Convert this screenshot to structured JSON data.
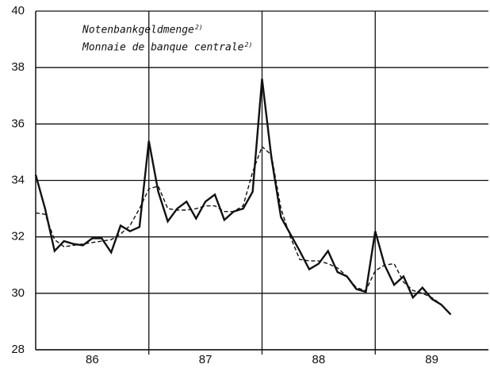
{
  "chart_data": {
    "type": "line",
    "legend_lines": [
      "Notenbankgeldmenge",
      "Monnaie de banque centrale"
    ],
    "legend_note": "2)",
    "x": [
      86,
      86.083,
      86.167,
      86.25,
      86.333,
      86.417,
      86.5,
      86.583,
      86.667,
      86.75,
      86.833,
      86.917,
      87,
      87.083,
      87.167,
      87.25,
      87.333,
      87.417,
      87.5,
      87.583,
      87.667,
      87.75,
      87.833,
      87.917,
      88,
      88.083,
      88.167,
      88.25,
      88.333,
      88.417,
      88.5,
      88.583,
      88.667,
      88.75,
      88.833,
      88.917,
      89,
      89.083,
      89.167,
      89.25,
      89.333,
      89.417,
      89.5,
      89.583,
      89.667
    ],
    "series": [
      {
        "color": "#111111",
        "style": "solid",
        "values": [
          34.2,
          33.0,
          31.5,
          31.85,
          31.75,
          31.7,
          31.95,
          31.95,
          31.45,
          32.4,
          32.2,
          32.35,
          35.4,
          33.6,
          32.55,
          33.0,
          33.25,
          32.65,
          33.25,
          33.5,
          32.6,
          32.9,
          33.0,
          33.6,
          37.6,
          34.8,
          32.7,
          32.1,
          31.5,
          30.85,
          31.05,
          31.5,
          30.75,
          30.6,
          30.15,
          30.05,
          32.2,
          31.0,
          30.3,
          30.6,
          29.85,
          30.2,
          29.8,
          29.6,
          29.25
        ]
      },
      {
        "color": "#111111",
        "style": "dashed",
        "values": [
          32.85,
          32.8,
          31.9,
          31.65,
          31.7,
          31.75,
          31.8,
          31.85,
          31.9,
          32.1,
          32.4,
          33.0,
          33.7,
          33.8,
          33.0,
          32.95,
          32.95,
          33.0,
          33.1,
          33.1,
          32.9,
          32.9,
          33.1,
          34.3,
          35.2,
          34.9,
          33.0,
          32.0,
          31.2,
          31.15,
          31.15,
          31.05,
          30.9,
          30.6,
          30.2,
          30.1,
          30.8,
          31.0,
          31.05,
          30.4,
          30.1,
          30.0,
          29.85,
          29.6,
          29.25
        ]
      }
    ],
    "xlim": [
      86,
      90
    ],
    "xticks": [
      {
        "value": 86.5,
        "label": "86"
      },
      {
        "value": 87.5,
        "label": "87"
      },
      {
        "value": 88.5,
        "label": "88"
      },
      {
        "value": 89.5,
        "label": "89"
      }
    ],
    "vlines": [
      87,
      88,
      89
    ],
    "ylim": [
      28,
      40
    ],
    "yticks": [
      28,
      30,
      32,
      34,
      36,
      38,
      40
    ],
    "grid": true
  }
}
